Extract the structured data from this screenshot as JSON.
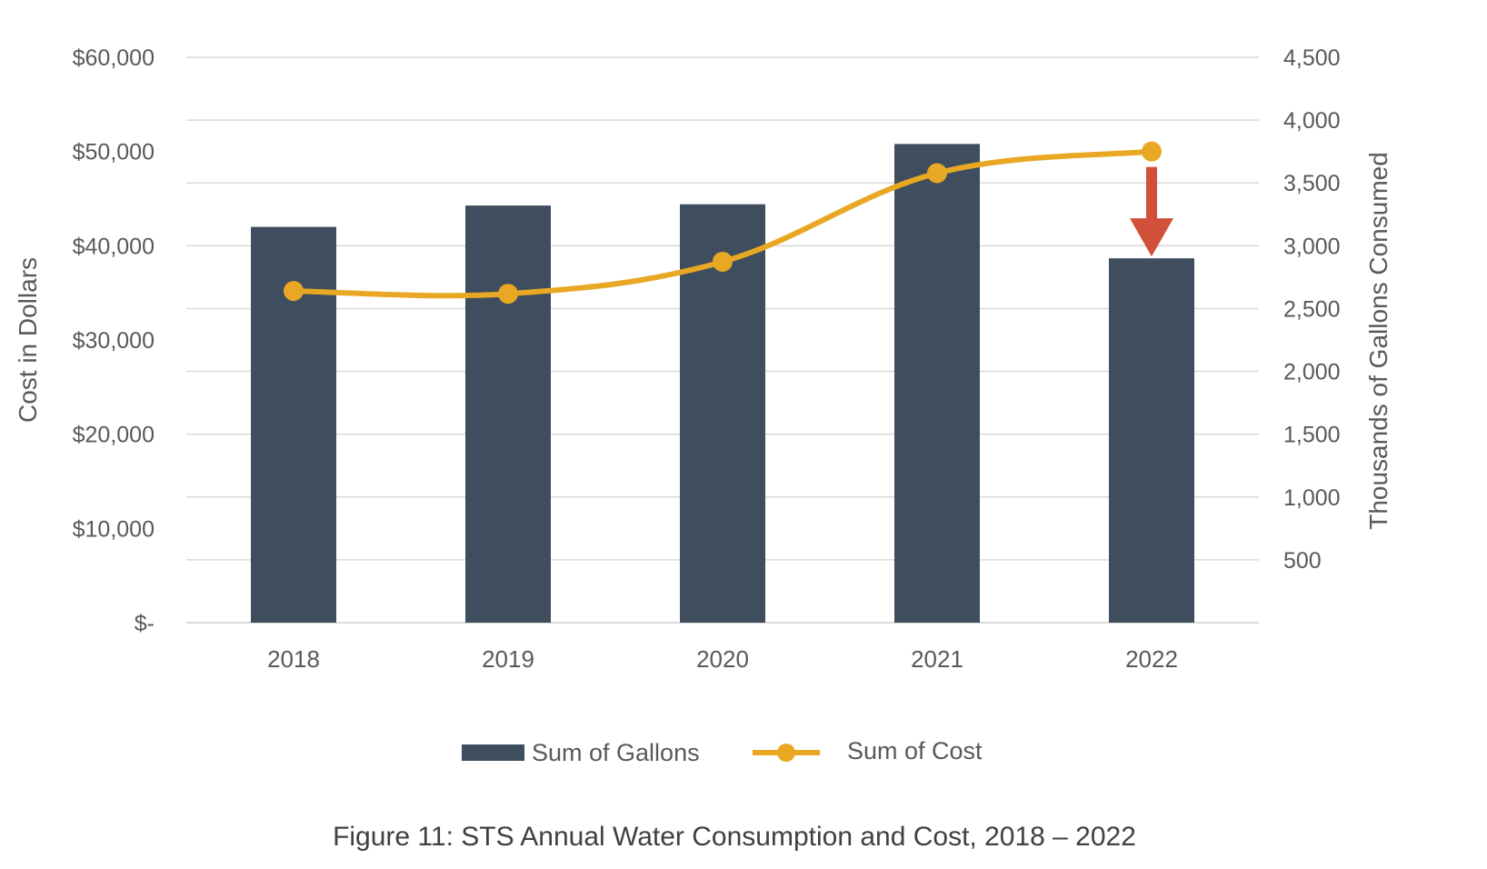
{
  "chart_data": {
    "type": "bar",
    "categories": [
      "2018",
      "2019",
      "2020",
      "2021",
      "2022"
    ],
    "series": [
      {
        "name": "Sum of Gallons",
        "kind": "bar",
        "axis": "right",
        "color": "#3e4e5e",
        "values": [
          3150,
          3320,
          3330,
          3810,
          2900
        ]
      },
      {
        "name": "Sum of Cost",
        "kind": "line",
        "axis": "left",
        "color": "#e8a823",
        "values": [
          35200,
          34900,
          38300,
          47700,
          50000
        ]
      }
    ],
    "ylabel": "Cost in Dollars",
    "y2label": "Thousands of Gallons Consumed",
    "ylim": [
      0,
      60000
    ],
    "y2lim": [
      0,
      4500
    ],
    "yticks": [
      "$-",
      "$10,000",
      "$20,000",
      "$30,000",
      "$40,000",
      "$50,000",
      "$60,000"
    ],
    "y2ticks": [
      "500",
      "1,000",
      "1,500",
      "2,000",
      "2,500",
      "3,000",
      "3,500",
      "4,000",
      "4,500"
    ],
    "grid": true,
    "legend_position": "bottom",
    "annotation": {
      "type": "arrow",
      "category": "2022",
      "color": "#d0503a"
    },
    "caption": "Figure 11: STS Annual Water Consumption and Cost, 2018 – 2022"
  }
}
